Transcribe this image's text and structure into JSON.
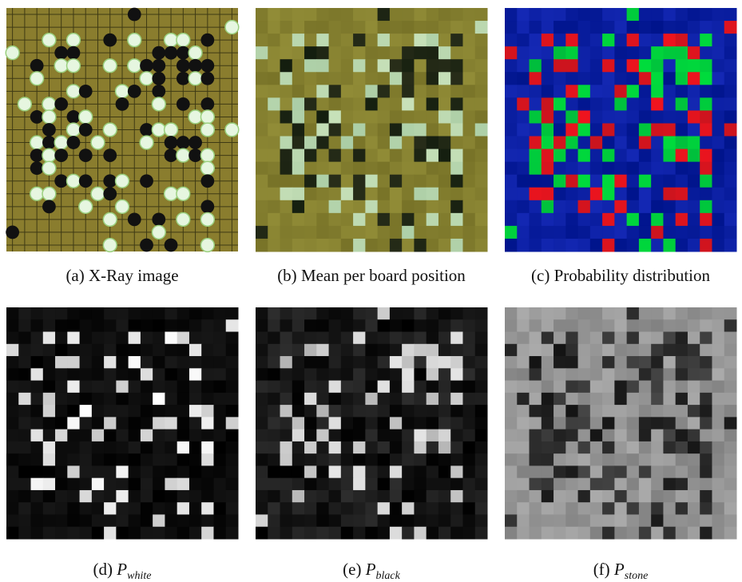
{
  "panels": [
    {
      "label": "(a)",
      "caption": "X-Ray image"
    },
    {
      "label": "(b)",
      "caption": "Mean per board position"
    },
    {
      "label": "(c)",
      "caption": "Probability distribution"
    },
    {
      "label": "(d)",
      "symbol": "P",
      "subscript": "white"
    },
    {
      "label": "(e)",
      "symbol": "P",
      "subscript": "black"
    },
    {
      "label": "(f)",
      "symbol": "P",
      "subscript": "stone"
    }
  ]
}
